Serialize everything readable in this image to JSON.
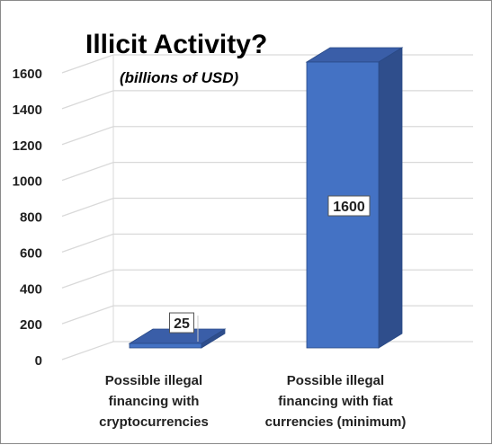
{
  "chart_data": {
    "type": "bar",
    "title": "Illicit Activity?",
    "subtitle": "(billions of USD)",
    "categories": [
      [
        "Possible illegal",
        "financing with",
        "cryptocurrencies"
      ],
      [
        "Possible illegal",
        "financing with fiat",
        "currencies (minimum)"
      ]
    ],
    "values": [
      25,
      1600
    ],
    "data_labels": [
      "25",
      "1600"
    ],
    "ylim": [
      0,
      1600
    ],
    "yticks": [
      0,
      200,
      400,
      600,
      800,
      1000,
      1200,
      1400,
      1600
    ],
    "grid": true,
    "style": "3d",
    "colors": {
      "bar_front": "#4472C4",
      "bar_side": "#2F4E8C",
      "bar_top": "#3A5EA8",
      "grid": "#D9D9D9"
    }
  }
}
